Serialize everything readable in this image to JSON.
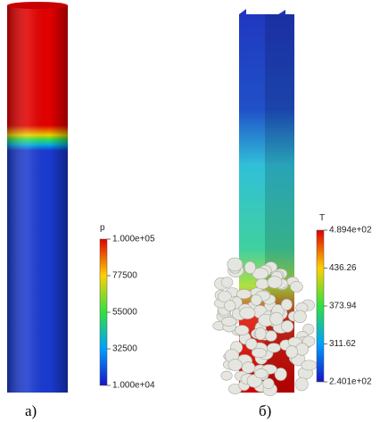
{
  "panels": [
    {
      "caption": "а)",
      "colorbar": {
        "title": "p",
        "ticks": [
          "1.000e+05",
          "77500",
          "55000",
          "32500",
          "1.000e+04"
        ]
      }
    },
    {
      "caption": "б)",
      "colorbar": {
        "title": "T",
        "ticks": [
          "4.894e+02",
          "436.26",
          "373.94",
          "311.62",
          "2.401e+02"
        ]
      }
    }
  ]
}
